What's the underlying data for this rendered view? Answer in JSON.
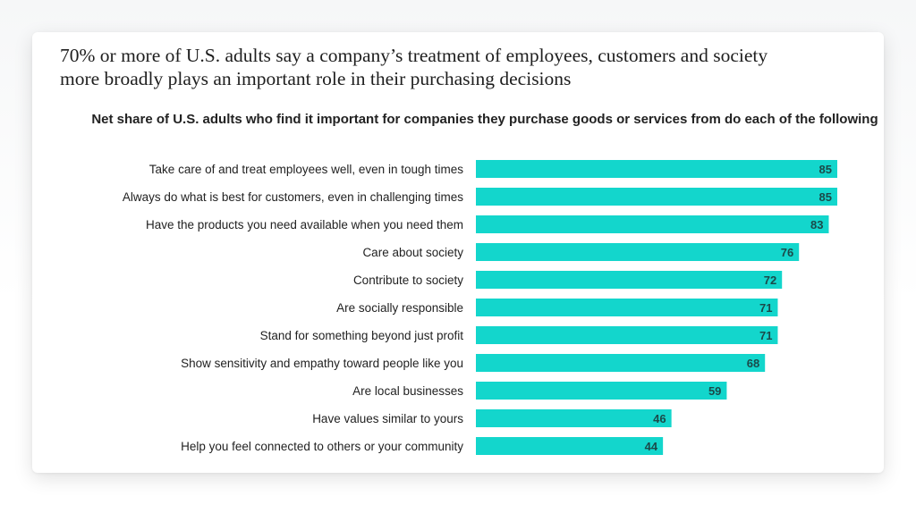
{
  "headline": "70% or more of U.S. adults say a company’s treatment of employees, customers and society more broadly plays an important role in their purchasing decisions",
  "colors": {
    "bar": "#13d6cc",
    "value_text": "#1b4a4a",
    "label_text": "#222222"
  },
  "chart_data": {
    "type": "bar",
    "orientation": "horizontal",
    "title": "Net share of U.S. adults who find it important for companies they purchase goods or services from do each of the following",
    "categories": [
      "Take care of and treat employees well, even in tough times",
      "Always do what is best for customers, even in challenging times",
      "Have the products you need available when you need them",
      "Care about society",
      "Contribute to society",
      "Are socially responsible",
      "Stand for something beyond just profit",
      "Show sensitivity and empathy toward people like you",
      "Are local businesses",
      "Have values similar to yours",
      "Help you feel connected to others or your community"
    ],
    "values": [
      85,
      85,
      83,
      76,
      72,
      71,
      71,
      68,
      59,
      46,
      44
    ],
    "xlim": [
      0,
      85
    ],
    "data_labels": true,
    "grid": false,
    "legend": "none"
  }
}
